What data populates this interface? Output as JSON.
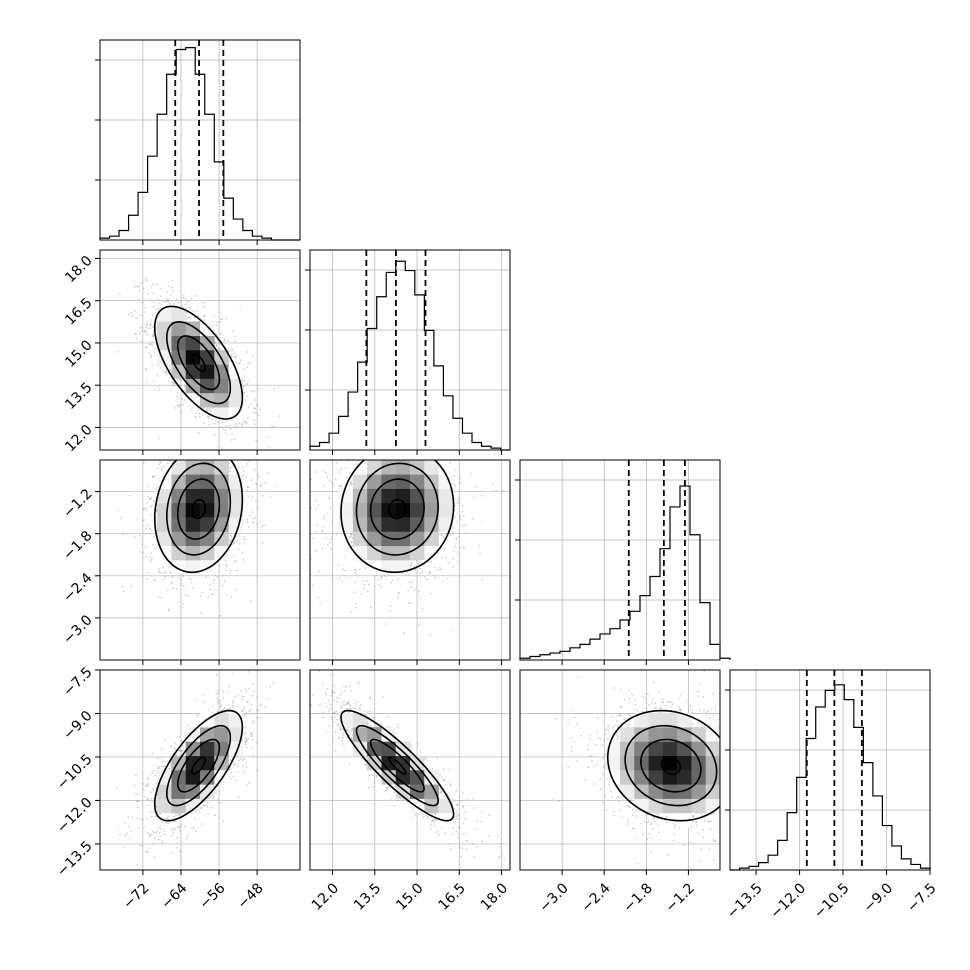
{
  "chart_data": {
    "type": "corner",
    "description_note": "Corner plot of a 4-parameter posterior: 1D histograms on the diagonal with dashed quantile lines, 2D density with contours below the diagonal.",
    "grid": true,
    "colors": {
      "line": "#000000",
      "scatter": "#9a9a9a",
      "grid": "#b0b0b0",
      "dashed": "#000000"
    },
    "params": [
      {
        "range": [
          -81,
          -39
        ],
        "ticks": [
          -72,
          -64,
          -56,
          -48
        ],
        "tick_labels": [
          "−72",
          "−64",
          "−56",
          "−48"
        ],
        "mean": -60.3,
        "sd": 4.6,
        "quantiles": [
          -65.2,
          -60.2,
          -55.1
        ],
        "hist_edges_start": -81,
        "hist_bin_width": 2,
        "hist": [
          0.01,
          0.02,
          0.05,
          0.13,
          0.25,
          0.44,
          0.66,
          0.87,
          1.0,
          1.01,
          0.87,
          0.66,
          0.41,
          0.22,
          0.11,
          0.05,
          0.02,
          0.01,
          0.0,
          0.0,
          0.0
        ],
        "hist_max": 1.05
      },
      {
        "range": [
          11.2,
          18.3
        ],
        "ticks": [
          12.0,
          13.5,
          15.0,
          16.5,
          18.0
        ],
        "tick_labels": [
          "12.0",
          "13.5",
          "15.0",
          "16.5",
          "18.0"
        ],
        "mean": 14.3,
        "sd": 1.0,
        "quantiles": [
          13.2,
          14.25,
          15.3
        ],
        "hist_edges_start": 11.2,
        "hist_bin_width": 0.3383,
        "hist": [
          0.02,
          0.04,
          0.09,
          0.18,
          0.31,
          0.47,
          0.65,
          0.82,
          0.95,
          1.01,
          0.96,
          0.83,
          0.64,
          0.45,
          0.29,
          0.17,
          0.09,
          0.04,
          0.02,
          0.01,
          0.0
        ],
        "hist_max": 1.07
      },
      {
        "range": [
          -3.6,
          -0.75
        ],
        "ticks": [
          -3.0,
          -2.4,
          -1.8,
          -1.2
        ],
        "tick_labels": [
          "−3.0",
          "−2.4",
          "−1.8",
          "−1.2"
        ],
        "mean": -1.45,
        "sd": 0.45,
        "quantiles": [
          -2.05,
          -1.55,
          -1.25
        ],
        "hist_edges_start": -3.6,
        "hist_bin_width": 0.1425,
        "hist": [
          0.01,
          0.02,
          0.03,
          0.04,
          0.05,
          0.07,
          0.09,
          0.12,
          0.15,
          0.18,
          0.23,
          0.28,
          0.37,
          0.48,
          0.64,
          0.88,
          1.0,
          0.72,
          0.33,
          0.09,
          0.01
        ],
        "hist_max": 1.15
      },
      {
        "range": [
          -14.4,
          -7.5
        ],
        "ticks": [
          -13.5,
          -12.0,
          -10.5,
          -9.0,
          -7.5
        ],
        "tick_labels": [
          "−13.5",
          "−12.0",
          "−10.5",
          "−9.0",
          "−7.5"
        ],
        "mean": -10.8,
        "sd": 0.95,
        "quantiles": [
          -11.75,
          -10.8,
          -9.85
        ],
        "hist_edges_start": -14.4,
        "hist_bin_width": 0.3286,
        "hist": [
          0.0,
          0.01,
          0.02,
          0.04,
          0.08,
          0.16,
          0.31,
          0.5,
          0.71,
          0.88,
          0.97,
          1.0,
          0.92,
          0.77,
          0.58,
          0.4,
          0.24,
          0.13,
          0.06,
          0.03,
          0.01
        ],
        "hist_max": 1.08
      }
    ],
    "correlations": {
      "1-0": -0.62,
      "2-0": 0.15,
      "2-1": 0.05,
      "3-0": 0.7,
      "3-1": -0.88,
      "3-2": -0.15
    }
  }
}
